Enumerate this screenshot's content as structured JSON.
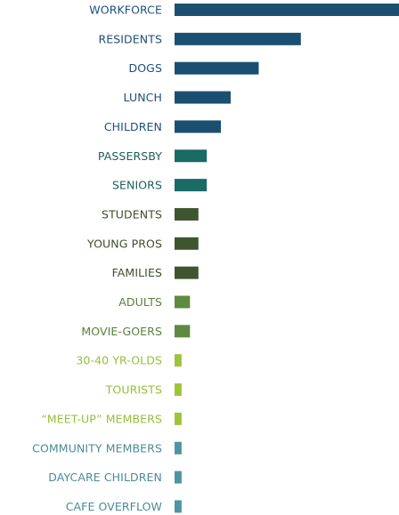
{
  "chart_data": {
    "type": "bar",
    "orientation": "horizontal",
    "categories": [
      "WORKFORCE",
      "RESIDENTS",
      "DOGS",
      "LUNCH",
      "CHILDREN",
      "PASSERSBY",
      "SENIORS",
      "STUDENTS",
      "YOUNG PROS",
      "FAMILIES",
      "ADULTS",
      "MOVIE-GOERS",
      "30-40 YR-OLDS",
      "TOURISTS",
      "“MEET-UP” MEMBERS",
      "COMMUNITY MEMBERS",
      "DAYCARE CHILDREN",
      "CAFE OVERFLOW"
    ],
    "values": [
      16,
      9,
      6,
      4,
      3.3,
      2.3,
      2.3,
      1.7,
      1.7,
      1.7,
      1.1,
      1.1,
      0.5,
      0.5,
      0.5,
      0.5,
      0.5,
      0.5
    ],
    "colors": [
      "#1b4f72",
      "#1b4f72",
      "#1b4f72",
      "#1b4f72",
      "#1b4f72",
      "#1a6a66",
      "#1a6a66",
      "#3e5530",
      "#3e5530",
      "#3e5530",
      "#5f8a3f",
      "#5f8a3f",
      "#9ec43a",
      "#9ec43a",
      "#9ec43a",
      "#4f94a2",
      "#4f94a2",
      "#4f94a2"
    ],
    "label_colors": [
      "#1f4e7a",
      "#1f4e7a",
      "#1f4e7a",
      "#1f4e7a",
      "#1f4e7a",
      "#1d5f5a",
      "#1d5f5a",
      "#3d4e2c",
      "#3d4e2c",
      "#3d4e2c",
      "#5a7f3a",
      "#5a7f3a",
      "#97bf3a",
      "#97bf3a",
      "#97bf3a",
      "#4a8a98",
      "#4a8a98",
      "#4a8a98"
    ],
    "title": "",
    "xlabel": "",
    "ylabel": "",
    "xlim": [
      0,
      16
    ],
    "grid": false,
    "legend": "none"
  }
}
